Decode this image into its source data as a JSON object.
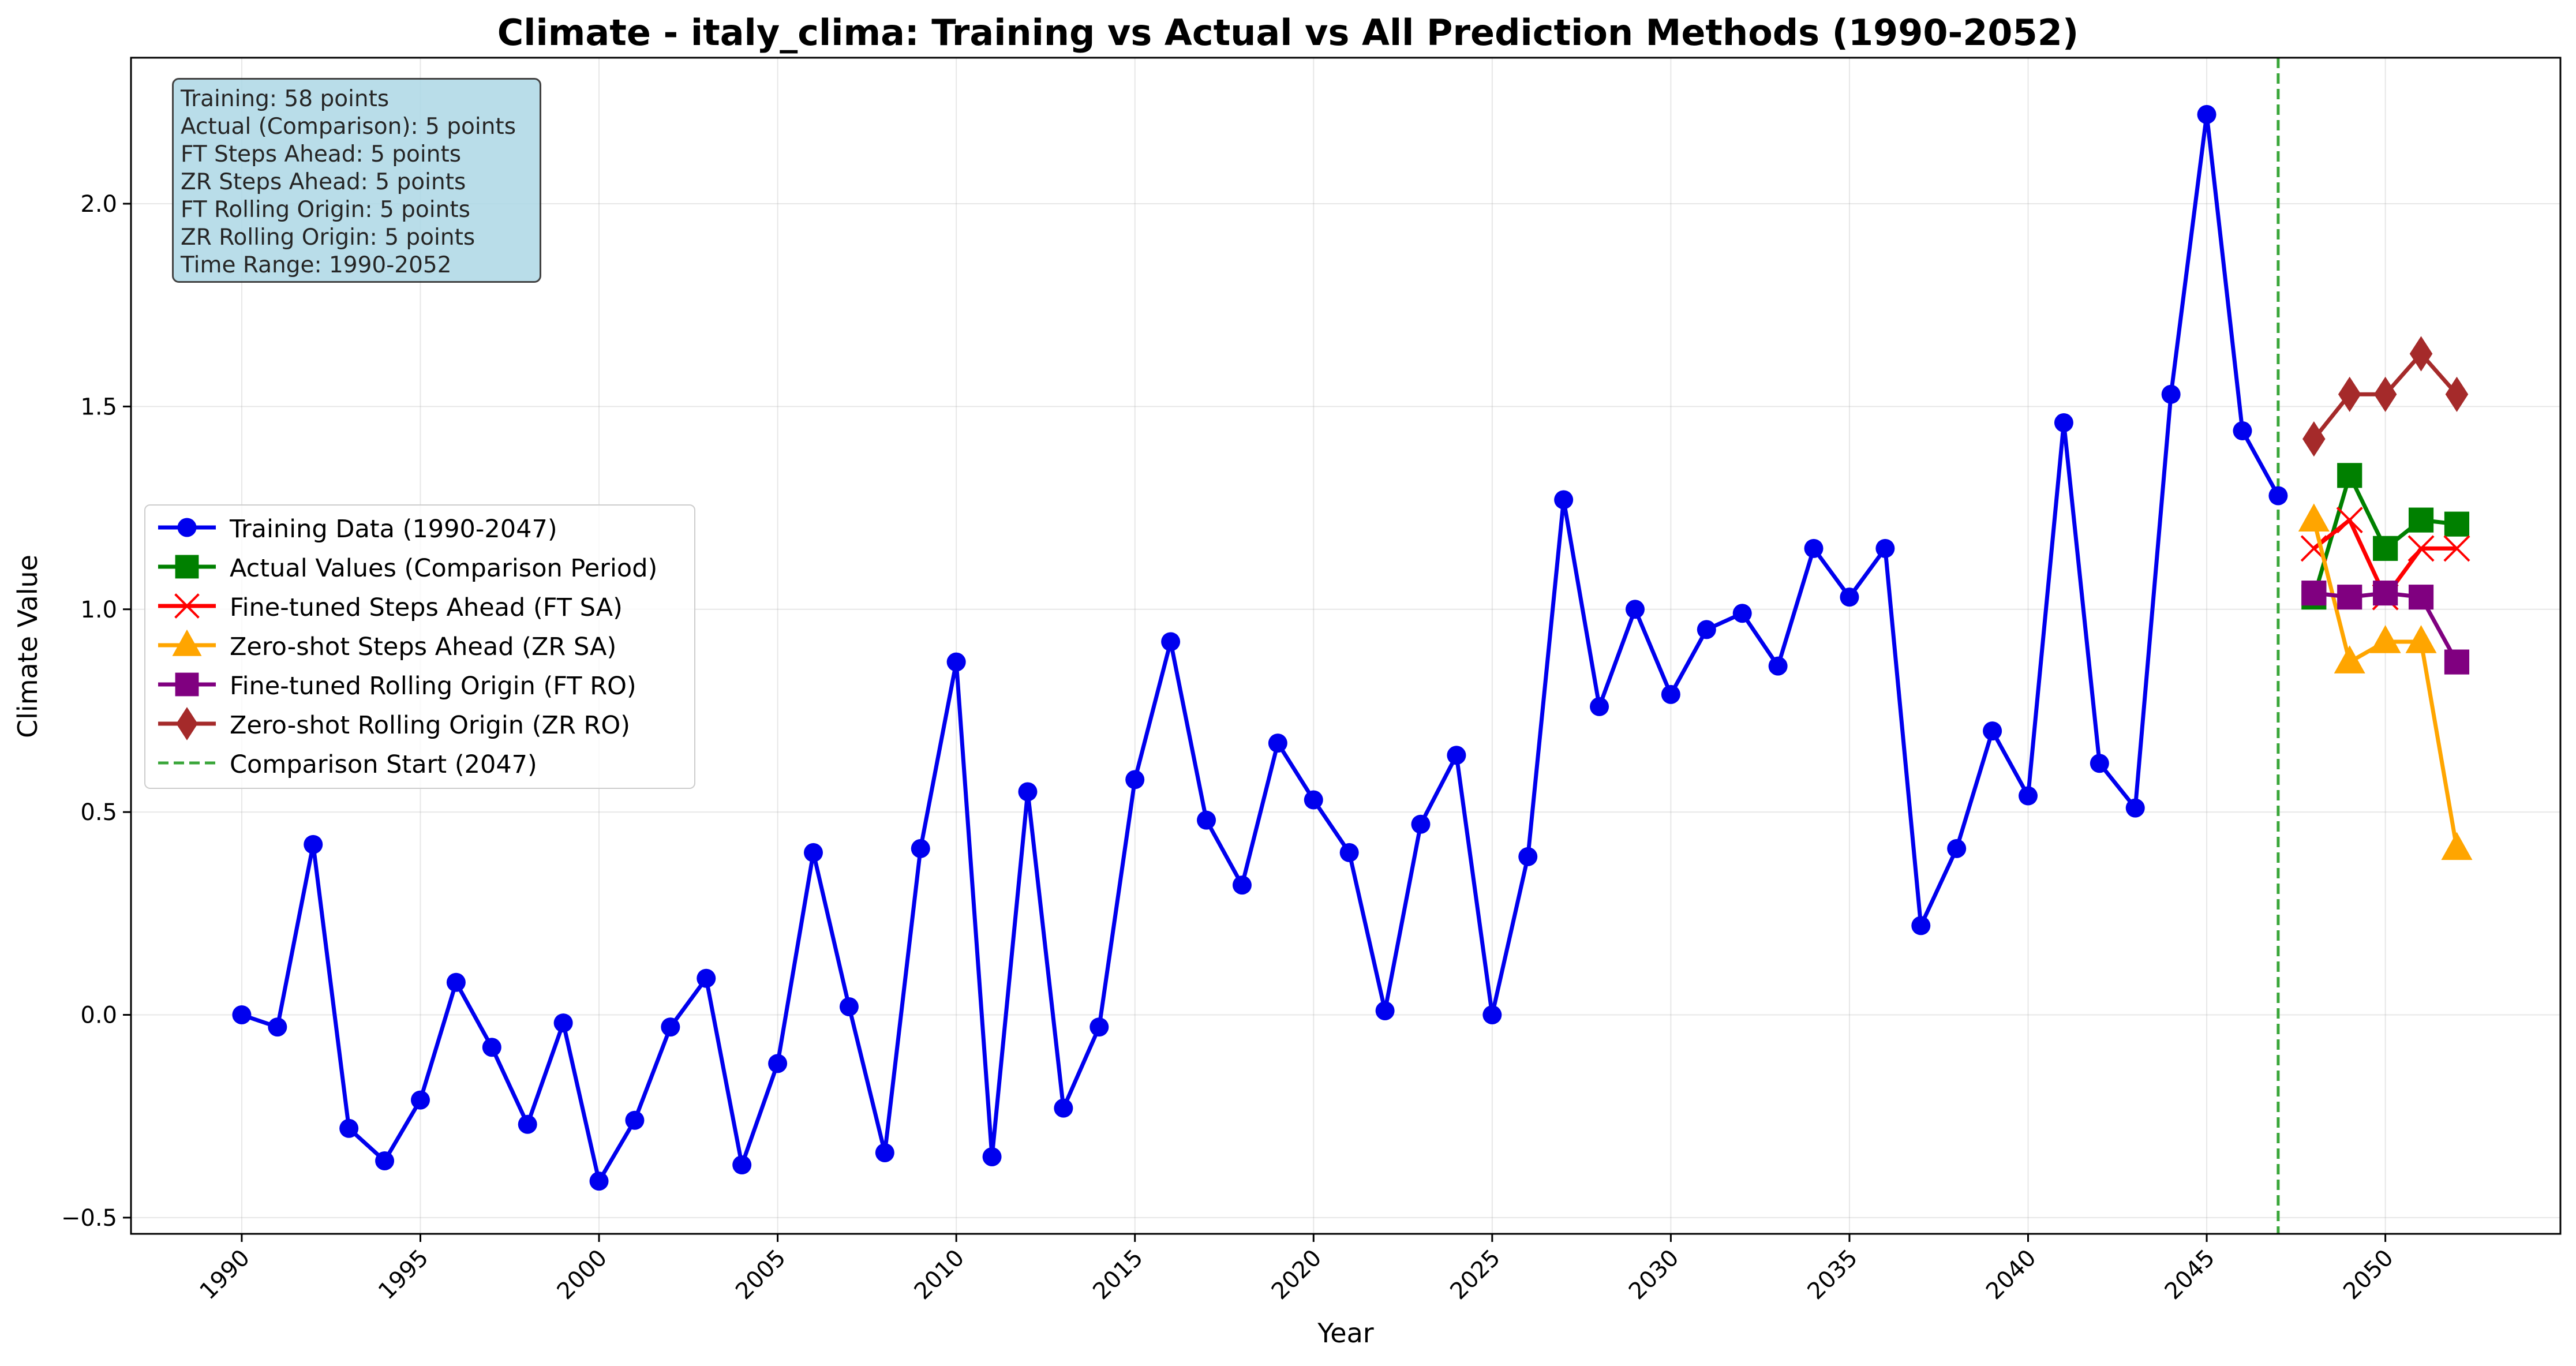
{
  "chart_data": {
    "type": "line",
    "title": "Climate - italy_clima: Training vs Actual vs All Prediction Methods (1990-2052)",
    "xlabel": "Year",
    "ylabel": "Climate Value",
    "xlim": [
      1986.9,
      2054.9
    ],
    "ylim": [
      -0.54,
      2.36
    ],
    "xticks": [
      1990,
      1995,
      2000,
      2005,
      2010,
      2015,
      2020,
      2025,
      2030,
      2035,
      2040,
      2045,
      2050
    ],
    "xtick_labels": [
      "1990",
      "1995",
      "2000",
      "2005",
      "2010",
      "2015",
      "2020",
      "2025",
      "2030",
      "2035",
      "2040",
      "2045",
      "2050"
    ],
    "yticks": [
      -0.5,
      0.0,
      0.5,
      1.0,
      1.5,
      2.0
    ],
    "ytick_labels": [
      "−0.5",
      "0.0",
      "0.5",
      "1.0",
      "1.5",
      "2.0"
    ],
    "grid": true,
    "legend_position": "center-left",
    "vline": {
      "x": 2047,
      "color": "#3aa63a",
      "label": "Comparison Start (2047)"
    },
    "series": [
      {
        "name": "Training Data (1990-2047)",
        "color": "#0000ee",
        "marker": "circle",
        "x": [
          1990,
          1991,
          1992,
          1993,
          1994,
          1995,
          1996,
          1997,
          1998,
          1999,
          2000,
          2001,
          2002,
          2003,
          2004,
          2005,
          2006,
          2007,
          2008,
          2009,
          2010,
          2011,
          2012,
          2013,
          2014,
          2015,
          2016,
          2017,
          2018,
          2019,
          2020,
          2021,
          2022,
          2023,
          2024,
          2025,
          2026,
          2027,
          2028,
          2029,
          2030,
          2031,
          2032,
          2033,
          2034,
          2035,
          2036,
          2037,
          2038,
          2039,
          2040,
          2041,
          2042,
          2043,
          2044,
          2045,
          2046,
          2047
        ],
        "y": [
          0.0,
          -0.03,
          0.42,
          -0.28,
          -0.36,
          -0.21,
          0.08,
          -0.08,
          -0.27,
          -0.02,
          -0.41,
          -0.26,
          -0.03,
          0.09,
          -0.37,
          -0.12,
          0.4,
          0.02,
          -0.34,
          0.41,
          0.87,
          -0.35,
          0.55,
          -0.23,
          -0.03,
          0.58,
          0.92,
          0.48,
          0.32,
          0.67,
          0.53,
          0.4,
          0.01,
          0.47,
          0.64,
          0.0,
          0.39,
          1.27,
          0.76,
          1.0,
          0.79,
          0.95,
          0.99,
          0.86,
          1.15,
          1.03,
          1.15,
          0.22,
          0.41,
          0.7,
          0.54,
          1.46,
          0.62,
          0.51,
          1.53,
          2.22,
          1.44,
          1.28
        ]
      },
      {
        "name": "Actual Values (Comparison Period)",
        "color": "#008000",
        "marker": "square",
        "x": [
          2048,
          2049,
          2050,
          2051,
          2052
        ],
        "y": [
          1.03,
          1.33,
          1.15,
          1.22,
          1.21
        ]
      },
      {
        "name": "Fine-tuned Steps Ahead (FT SA)",
        "color": "#ff0000",
        "marker": "x",
        "x": [
          2048,
          2049,
          2050,
          2051,
          2052
        ],
        "y": [
          1.15,
          1.22,
          1.03,
          1.15,
          1.15
        ]
      },
      {
        "name": "Zero-shot Steps Ahead (ZR SA)",
        "color": "#ffa500",
        "marker": "triangle",
        "x": [
          2048,
          2049,
          2050,
          2051,
          2052
        ],
        "y": [
          1.22,
          0.87,
          0.92,
          0.92,
          0.41
        ]
      },
      {
        "name": "Fine-tuned Rolling Origin (FT RO)",
        "color": "#800080",
        "marker": "square",
        "x": [
          2048,
          2049,
          2050,
          2051,
          2052
        ],
        "y": [
          1.04,
          1.03,
          1.04,
          1.03,
          0.87
        ]
      },
      {
        "name": "Zero-shot Rolling Origin (ZR RO)",
        "color": "#a52a2a",
        "marker": "diamond",
        "x": [
          2048,
          2049,
          2050,
          2051,
          2052
        ],
        "y": [
          1.42,
          1.53,
          1.53,
          1.63,
          1.53
        ]
      }
    ],
    "info_box": [
      "Training: 58 points",
      "Actual (Comparison): 5 points",
      "FT Steps Ahead: 5 points",
      "ZR Steps Ahead: 5 points",
      "FT Rolling Origin: 5 points",
      "ZR Rolling Origin: 5 points",
      "Time Range: 1990-2052"
    ]
  }
}
